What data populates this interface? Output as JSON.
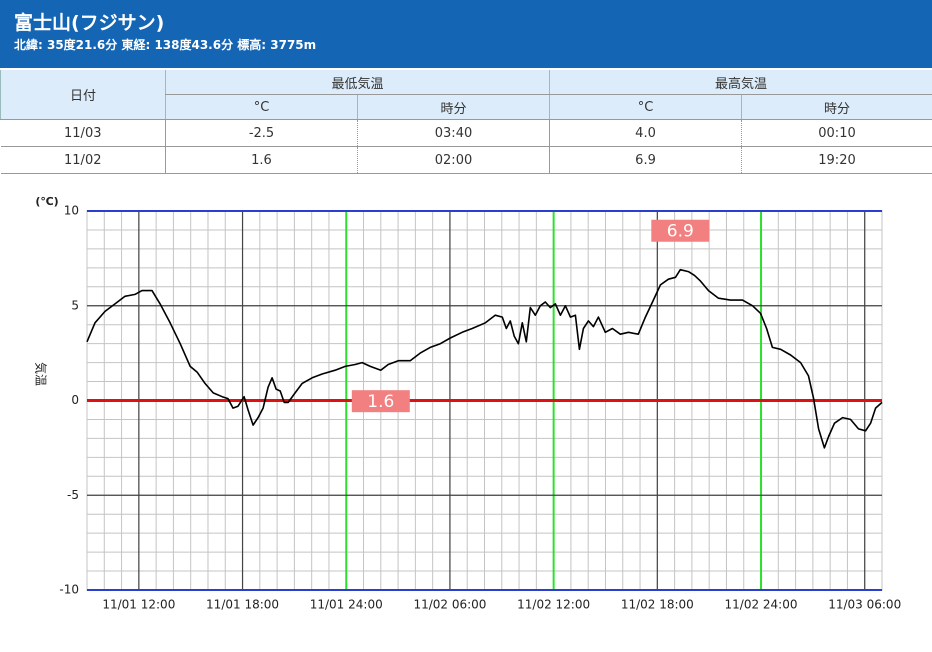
{
  "header": {
    "title": "富士山(フジサン)",
    "subtitle": "北緯: 35度21.6分 東経: 138度43.6分 標高: 3775m"
  },
  "table": {
    "date_header": "日付",
    "groups": [
      "最低気温",
      "最高気温"
    ],
    "subheaders": [
      "°C",
      "時分",
      "°C",
      "時分"
    ],
    "rows": [
      [
        "11/03",
        "-2.5",
        "03:40",
        "4.0",
        "00:10"
      ],
      [
        "11/02",
        "1.6",
        "02:00",
        "6.9",
        "19:20"
      ]
    ]
  },
  "chart_data": {
    "type": "line",
    "y_unit": "(℃)",
    "y_label": "気温",
    "x": [
      9.0,
      9.46,
      10.04,
      10.62,
      11.2,
      11.78,
      12.18,
      12.76,
      13.23,
      13.81,
      14.39,
      14.97,
      15.37,
      15.83,
      16.3,
      16.82,
      17.16,
      17.45,
      17.74,
      18.09,
      18.32,
      18.61,
      18.9,
      19.19,
      19.48,
      19.71,
      19.94,
      20.18,
      20.41,
      20.64,
      21.04,
      21.45,
      22.03,
      22.61,
      23.36,
      23.94,
      24.52,
      24.92,
      25.39,
      26.0,
      26.43,
      27.01,
      27.7,
      28.28,
      28.86,
      29.44,
      30.02,
      30.71,
      31.29,
      32.05,
      32.62,
      33.03,
      33.26,
      33.49,
      33.72,
      33.96,
      34.19,
      34.42,
      34.65,
      34.94,
      35.23,
      35.52,
      35.81,
      36.1,
      36.39,
      36.68,
      36.97,
      37.26,
      37.49,
      37.72,
      38.01,
      38.3,
      38.59,
      38.99,
      39.4,
      39.86,
      40.33,
      40.9,
      41.31,
      41.72,
      42.18,
      42.64,
      43.05,
      43.33,
      43.8,
      44.15,
      44.5,
      44.96,
      45.54,
      46.23,
      46.93,
      47.51,
      47.97,
      48.32,
      48.66,
      49.13,
      49.71,
      50.29,
      50.75,
      51.04,
      51.33,
      51.67,
      51.91,
      52.25,
      52.72,
      53.18,
      53.64,
      54.05,
      54.34,
      54.63,
      55.0
    ],
    "series": [
      {
        "color": "#000000",
        "values": [
          3.1,
          4.1,
          4.7,
          5.1,
          5.5,
          5.6,
          5.8,
          5.8,
          5.1,
          4.1,
          3.0,
          1.8,
          1.5,
          0.9,
          0.4,
          0.2,
          0.1,
          -0.4,
          -0.3,
          0.2,
          -0.5,
          -1.3,
          -0.9,
          -0.4,
          0.7,
          1.2,
          0.6,
          0.5,
          -0.1,
          -0.1,
          0.4,
          0.9,
          1.2,
          1.4,
          1.6,
          1.8,
          1.9,
          2.0,
          1.8,
          1.6,
          1.9,
          2.1,
          2.1,
          2.5,
          2.8,
          3.0,
          3.3,
          3.6,
          3.8,
          4.1,
          4.5,
          4.4,
          3.8,
          4.2,
          3.4,
          3.0,
          4.1,
          3.1,
          4.9,
          4.5,
          5.0,
          5.2,
          4.9,
          5.1,
          4.5,
          5.0,
          4.4,
          4.5,
          2.7,
          3.8,
          4.2,
          3.9,
          4.4,
          3.6,
          3.8,
          3.5,
          3.6,
          3.5,
          4.4,
          5.2,
          6.1,
          6.4,
          6.5,
          6.9,
          6.8,
          6.6,
          6.3,
          5.8,
          5.4,
          5.3,
          5.3,
          5.0,
          4.6,
          3.8,
          2.8,
          2.7,
          2.4,
          2.0,
          1.3,
          0.1,
          -1.5,
          -2.5,
          -1.9,
          -1.2,
          -0.9,
          -1.0,
          -1.5,
          -1.6,
          -1.2,
          -0.4,
          -0.1
        ]
      }
    ],
    "xlim": [
      9,
      55
    ],
    "ylim": [
      -10,
      10
    ],
    "yticks": [
      10,
      5,
      0,
      -5,
      -10
    ],
    "xticks": [
      {
        "value": 12,
        "label": "11/01 12:00"
      },
      {
        "value": 18,
        "label": "11/01 18:00"
      },
      {
        "value": 24,
        "label": "11/01 24:00"
      },
      {
        "value": 30,
        "label": "11/02 06:00"
      },
      {
        "value": 36,
        "label": "11/02 12:00"
      },
      {
        "value": 42,
        "label": "11/02 18:00"
      },
      {
        "value": 48,
        "label": "11/02 24:00"
      },
      {
        "value": 54,
        "label": "11/03 06:00"
      }
    ],
    "highlight_lines": {
      "color": "#2ee02e",
      "x": [
        24,
        36,
        48
      ]
    },
    "zero_line_color": "#dd1111",
    "border_color": "#2a3fd0",
    "annotations": [
      {
        "x": 43.33,
        "value": 6.9,
        "color": "#f28080"
      },
      {
        "x": 26,
        "value": 1.6,
        "color": "#f28080"
      }
    ]
  }
}
